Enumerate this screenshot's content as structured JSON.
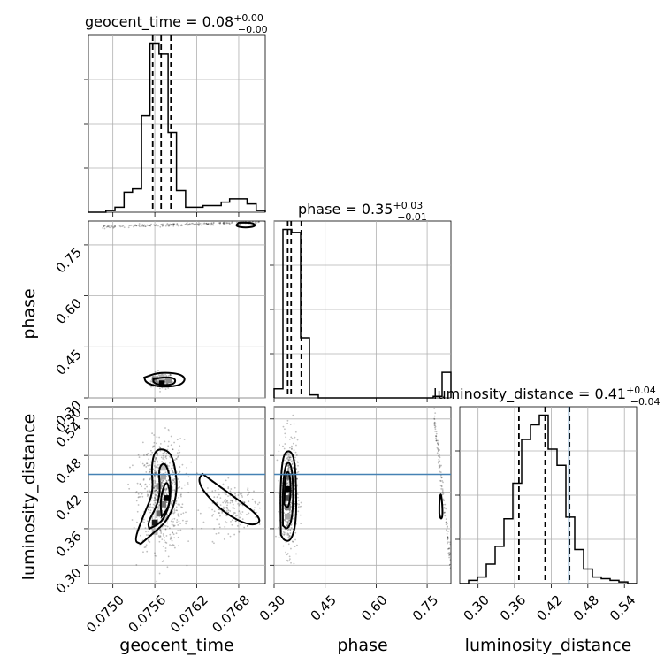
{
  "chart_data": {
    "type": "corner",
    "parameters": [
      "geocent_time",
      "phase",
      "luminosity_distance"
    ],
    "titles": [
      {
        "param": "geocent_time",
        "median": "0.08",
        "plus": "+0.00",
        "minus": "−0.00"
      },
      {
        "param": "phase",
        "median": "0.35",
        "plus": "+0.03",
        "minus": "−0.01"
      },
      {
        "param": "luminosity_distance",
        "median": "0.41",
        "plus": "+0.04",
        "minus": "−0.04"
      }
    ],
    "grid": true,
    "ranges": {
      "geocent_time": [
        0.07465,
        0.07718
      ],
      "phase": [
        0.3,
        0.82
      ],
      "luminosity_distance": [
        0.27,
        0.56
      ]
    },
    "ticks": {
      "geocent_time": {
        "values": [
          0.075,
          0.0756,
          0.0762,
          0.0768
        ],
        "labels": [
          "0.0750",
          "0.0756",
          "0.0762",
          "0.0768"
        ]
      },
      "phase": {
        "values": [
          0.3,
          0.45,
          0.6,
          0.75
        ],
        "labels": [
          "0.30",
          "0.45",
          "0.60",
          "0.75"
        ]
      },
      "luminosity_distance": {
        "values": [
          0.3,
          0.36,
          0.42,
          0.48,
          0.54
        ],
        "labels": [
          "0.30",
          "0.36",
          "0.42",
          "0.48",
          "0.54"
        ]
      }
    },
    "diag_hist": [
      {
        "param": "geocent_time",
        "edges": [
          0.07465,
          0.07478,
          0.0749,
          0.07503,
          0.07516,
          0.07528,
          0.07541,
          0.07553,
          0.07566,
          0.07579,
          0.07591,
          0.07604,
          0.07617,
          0.07629,
          0.07642,
          0.07655,
          0.07667,
          0.0768,
          0.07692,
          0.07705,
          0.07718
        ],
        "counts": [
          0,
          0,
          1,
          3,
          12,
          14,
          58,
          101,
          95,
          48,
          13,
          3,
          3,
          4,
          4,
          6,
          8,
          8,
          5,
          1
        ],
        "quantiles": [
          0.07557,
          0.07569,
          0.07583
        ]
      },
      {
        "param": "phase",
        "edges": [
          0.3,
          0.326,
          0.352,
          0.378,
          0.404,
          0.43,
          0.456,
          0.482,
          0.508,
          0.534,
          0.56,
          0.586,
          0.612,
          0.638,
          0.664,
          0.69,
          0.716,
          0.742,
          0.768,
          0.794,
          0.82
        ],
        "counts": [
          6,
          112,
          110,
          40,
          2,
          0,
          0,
          0,
          0,
          0,
          0,
          0,
          0,
          0,
          0,
          0,
          0,
          0,
          1,
          17
        ],
        "quantiles": [
          0.34,
          0.35,
          0.38
        ]
      },
      {
        "param": "luminosity_distance",
        "edges": [
          0.27,
          0.2845,
          0.299,
          0.3135,
          0.328,
          0.3425,
          0.357,
          0.3715,
          0.386,
          0.4005,
          0.415,
          0.4295,
          0.444,
          0.4585,
          0.473,
          0.4875,
          0.502,
          0.5165,
          0.531,
          0.5455,
          0.56
        ],
        "counts": [
          0,
          2,
          4,
          12,
          23,
          40,
          62,
          89,
          98,
          104,
          83,
          73,
          41,
          21,
          9,
          4,
          3,
          2,
          1,
          0
        ],
        "quantiles": [
          0.367,
          0.41,
          0.45
        ]
      }
    ],
    "truth": {
      "luminosity_distance": 0.449
    },
    "density_2d": [
      {
        "x": "geocent_time",
        "y": "phase",
        "scatter_clusters": [
          {
            "cx": 0.0757,
            "cy": 0.35,
            "sx": 8e-05,
            "sy": 0.012,
            "n": 160
          },
          {
            "band_x": [
              0.07485,
              0.07718
            ],
            "band_y": [
              0.795,
              0.818
            ],
            "n": 200
          }
        ],
        "cells": [
          {
            "x": 0.0757,
            "y": 0.345,
            "level": 1.0
          },
          {
            "x": 0.0756,
            "y": 0.355,
            "level": 0.5
          },
          {
            "x": 0.0758,
            "y": 0.352,
            "level": 0.45
          },
          {
            "x": 0.0757,
            "y": 0.36,
            "level": 0.3
          }
        ],
        "contours": [
          [
            [
              0.07545,
              0.36
            ],
            [
              0.07565,
              0.375
            ],
            [
              0.07595,
              0.372
            ],
            [
              0.07605,
              0.355
            ],
            [
              0.07595,
              0.335
            ],
            [
              0.07565,
              0.332
            ],
            [
              0.07547,
              0.345
            ]
          ],
          [
            [
              0.07558,
              0.355
            ],
            [
              0.07575,
              0.362
            ],
            [
              0.0759,
              0.357
            ],
            [
              0.07588,
              0.34
            ],
            [
              0.0757,
              0.337
            ],
            [
              0.07558,
              0.344
            ]
          ],
          [
            [
              0.0768,
              0.815
            ],
            [
              0.077,
              0.815
            ],
            [
              0.07705,
              0.805
            ],
            [
              0.0769,
              0.8
            ],
            [
              0.07675,
              0.805
            ]
          ]
        ]
      },
      {
        "x": "geocent_time",
        "y": "luminosity_distance",
        "scatter_clusters": [
          {
            "cx": 0.0757,
            "cy": 0.415,
            "sx": 0.00016,
            "sy": 0.045,
            "n": 700
          },
          {
            "cx": 0.0767,
            "cy": 0.395,
            "sx": 0.0002,
            "sy": 0.02,
            "n": 180
          }
        ],
        "cells": [
          {
            "x": 0.07578,
            "y": 0.41,
            "level": 1.0
          },
          {
            "x": 0.0756,
            "y": 0.37,
            "level": 0.9
          },
          {
            "x": 0.07566,
            "y": 0.385,
            "level": 0.6
          },
          {
            "x": 0.07572,
            "y": 0.4,
            "level": 0.55
          },
          {
            "x": 0.07566,
            "y": 0.43,
            "level": 0.4
          },
          {
            "x": 0.07572,
            "y": 0.445,
            "level": 0.35
          },
          {
            "x": 0.07572,
            "y": 0.46,
            "level": 0.25
          },
          {
            "x": 0.0756,
            "y": 0.355,
            "level": 0.3
          }
        ],
        "contours": [
          [
            [
              0.0754,
              0.335
            ],
            [
              0.07555,
              0.35
            ],
            [
              0.0758,
              0.375
            ],
            [
              0.07593,
              0.42
            ],
            [
              0.07588,
              0.47
            ],
            [
              0.07578,
              0.49
            ],
            [
              0.0756,
              0.49
            ],
            [
              0.07555,
              0.46
            ],
            [
              0.07558,
              0.42
            ],
            [
              0.07545,
              0.385
            ],
            [
              0.0753,
              0.34
            ]
          ],
          [
            [
              0.07552,
              0.36
            ],
            [
              0.0757,
              0.37
            ],
            [
              0.07582,
              0.4
            ],
            [
              0.07583,
              0.44
            ],
            [
              0.07575,
              0.47
            ],
            [
              0.07565,
              0.46
            ],
            [
              0.07568,
              0.42
            ],
            [
              0.07562,
              0.395
            ],
            [
              0.0755,
              0.37
            ]
          ],
          [
            [
              0.0757,
              0.38
            ],
            [
              0.0758,
              0.395
            ],
            [
              0.07582,
              0.42
            ],
            [
              0.07577,
              0.44
            ],
            [
              0.0757,
              0.42
            ],
            [
              0.07568,
              0.398
            ]
          ],
          [
            [
              0.07628,
              0.45
            ],
            [
              0.0764,
              0.44
            ],
            [
              0.0767,
              0.415
            ],
            [
              0.07705,
              0.385
            ],
            [
              0.07712,
              0.37
            ],
            [
              0.07695,
              0.365
            ],
            [
              0.0766,
              0.385
            ],
            [
              0.0763,
              0.42
            ],
            [
              0.07622,
              0.44
            ]
          ]
        ]
      },
      {
        "x": "phase",
        "y": "luminosity_distance",
        "scatter_clusters": [
          {
            "cx": 0.345,
            "cy": 0.415,
            "sx": 0.012,
            "sy": 0.045,
            "n": 500
          },
          {
            "band_x": [
              0.77,
              0.82
            ],
            "band_y": [
              0.3,
              0.55
            ],
            "n": 120,
            "diag": true
          }
        ],
        "cells": [
          {
            "x": 0.34,
            "y": 0.425,
            "level": 1.0
          },
          {
            "x": 0.34,
            "y": 0.41,
            "level": 0.7
          },
          {
            "x": 0.34,
            "y": 0.445,
            "level": 0.6
          },
          {
            "x": 0.34,
            "y": 0.395,
            "level": 0.5
          },
          {
            "x": 0.34,
            "y": 0.38,
            "level": 0.35
          }
        ],
        "contours": [
          [
            [
              0.32,
              0.35
            ],
            [
              0.33,
              0.34
            ],
            [
              0.35,
              0.34
            ],
            [
              0.365,
              0.37
            ],
            [
              0.365,
              0.43
            ],
            [
              0.36,
              0.475
            ],
            [
              0.345,
              0.49
            ],
            [
              0.325,
              0.48
            ],
            [
              0.318,
              0.42
            ]
          ],
          [
            [
              0.326,
              0.365
            ],
            [
              0.34,
              0.358
            ],
            [
              0.355,
              0.38
            ],
            [
              0.356,
              0.44
            ],
            [
              0.348,
              0.47
            ],
            [
              0.332,
              0.465
            ],
            [
              0.325,
              0.42
            ]
          ],
          [
            [
              0.33,
              0.4
            ],
            [
              0.342,
              0.392
            ],
            [
              0.35,
              0.42
            ],
            [
              0.345,
              0.455
            ],
            [
              0.333,
              0.45
            ]
          ],
          [
            [
              0.786,
              0.385
            ],
            [
              0.79,
              0.375
            ],
            [
              0.796,
              0.38
            ],
            [
              0.794,
              0.405
            ],
            [
              0.79,
              0.42
            ],
            [
              0.786,
              0.405
            ]
          ]
        ]
      }
    ]
  }
}
